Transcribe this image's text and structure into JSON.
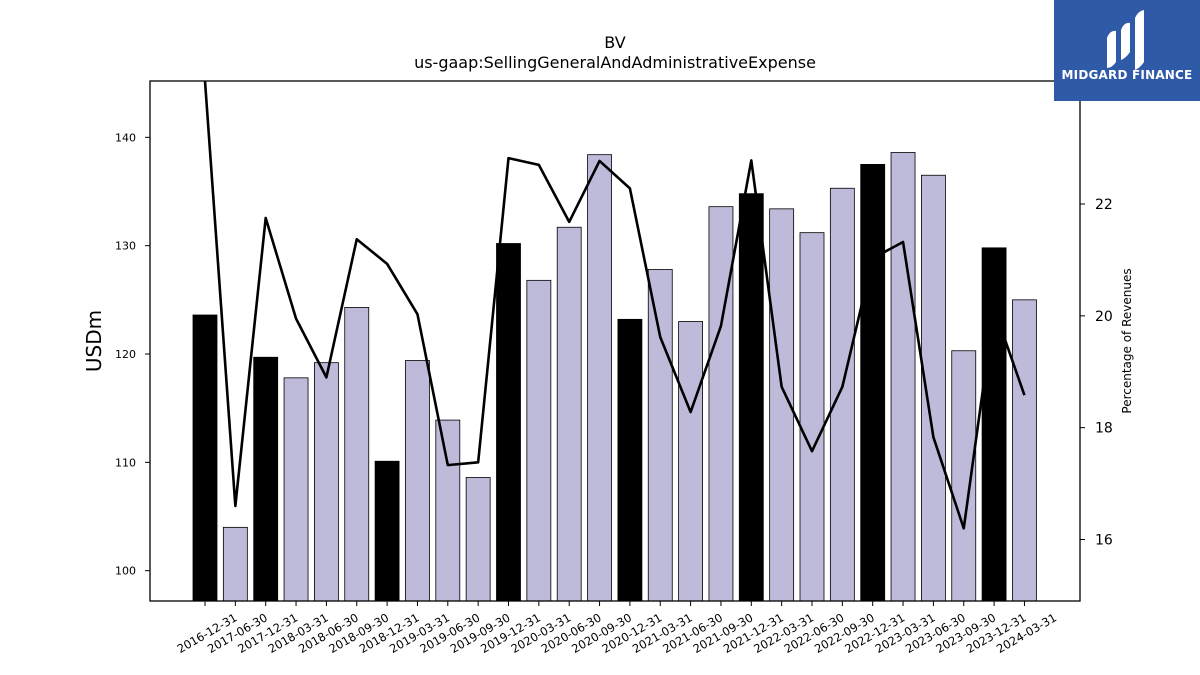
{
  "logo": {
    "text": "MIDGARD FINANCE"
  },
  "colors": {
    "bar_annual": "#000000",
    "bar_quarter": "#bebada",
    "line": "#000000"
  },
  "chart_data": {
    "type": "bar",
    "title": "BV",
    "subtitle": "us-gaap:SellingGeneralAndAdministrativeExpense",
    "ylabel": "USDm",
    "y2label": "Percentage of Revenues",
    "ylim": [
      97.2,
      145.2
    ],
    "y2lim": [
      14.9,
      24.2
    ],
    "yticks": [
      100,
      110,
      120,
      130,
      140
    ],
    "y2ticks": [
      16,
      18,
      20,
      22
    ],
    "categories": [
      "2016-12-31",
      "2017-06-30",
      "2017-12-31",
      "2018-03-31",
      "2018-06-30",
      "2018-09-30",
      "2018-12-31",
      "2019-03-31",
      "2019-06-30",
      "2019-09-30",
      "2019-12-31",
      "2020-03-31",
      "2020-06-30",
      "2020-09-30",
      "2020-12-31",
      "2021-03-31",
      "2021-06-30",
      "2021-09-30",
      "2021-12-31",
      "2022-03-31",
      "2022-06-30",
      "2022-09-30",
      "2022-12-31",
      "2023-03-31",
      "2023-06-30",
      "2023-09-30",
      "2023-12-31",
      "2024-03-31"
    ],
    "series": [
      {
        "kind": "bar",
        "values": [
          123.6,
          104.0,
          119.7,
          117.8,
          119.2,
          124.3,
          110.1,
          119.4,
          113.9,
          108.6,
          130.2,
          126.8,
          131.7,
          138.4,
          123.2,
          127.8,
          123.0,
          133.6,
          134.8,
          133.4,
          131.2,
          135.3,
          137.5,
          138.6,
          136.5,
          120.3,
          129.8,
          125.0
        ],
        "annual": [
          true,
          false,
          true,
          false,
          false,
          false,
          true,
          false,
          false,
          false,
          true,
          false,
          false,
          false,
          true,
          false,
          false,
          false,
          true,
          false,
          false,
          false,
          true,
          false,
          false,
          false,
          true,
          false
        ]
      },
      {
        "kind": "line",
        "axis": "right",
        "values": [
          24.2,
          16.6,
          21.75,
          19.95,
          18.9,
          21.37,
          20.93,
          20.03,
          17.33,
          17.38,
          22.82,
          22.7,
          21.68,
          22.77,
          22.28,
          19.62,
          18.28,
          19.82,
          22.78,
          18.73,
          17.58,
          18.73,
          21.03,
          21.32,
          17.83,
          16.2,
          20.13,
          18.58
        ]
      }
    ]
  }
}
